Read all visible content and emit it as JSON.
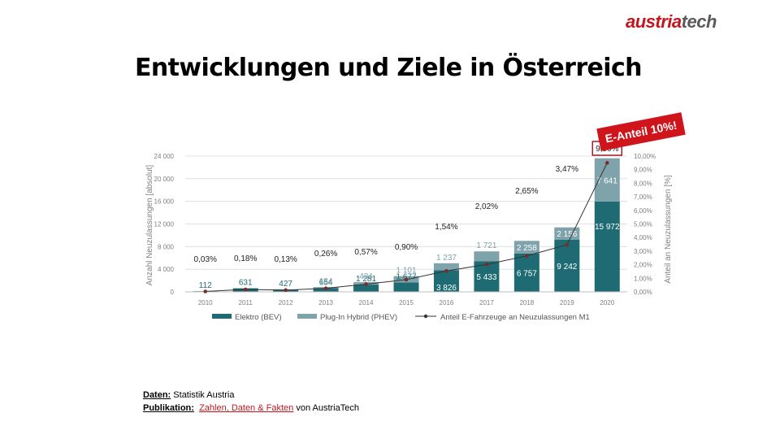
{
  "brand": {
    "logo_part1": "austria",
    "logo_part2": "tech"
  },
  "slide": {
    "title": "Entwicklungen und Ziele in Österreich"
  },
  "badge": {
    "text": "E-Anteil 10%!"
  },
  "footer": {
    "data_label": "Daten:",
    "data_value": "Statistik Austria",
    "pub_label": "Publikation:",
    "pub_link": "Zahlen, Daten & Fakten",
    "pub_suffix": "von AustriaTech"
  },
  "colors": {
    "bev": "#1f6b73",
    "phev": "#7fa3aa",
    "line": "#333333",
    "badge": "#d0141c",
    "accent": "#a31c24"
  },
  "chart_data": {
    "type": "bar",
    "stacked": true,
    "categories": [
      "2010",
      "2011",
      "2012",
      "2013",
      "2014",
      "2015",
      "2016",
      "2017",
      "2018",
      "2019",
      "2020"
    ],
    "series": [
      {
        "name": "Elektro (BEV)",
        "values": [
          112,
          631,
          427,
          654,
          1281,
          1677,
          3826,
          5433,
          6757,
          9242,
          15972
        ],
        "labels": [
          "112",
          "631",
          "427",
          "654",
          "1 281",
          "1 677",
          "3 826",
          "5 433",
          "6 757",
          "9 242",
          "15 972"
        ]
      },
      {
        "name": "Plug-In Hybrid (PHEV)",
        "values": [
          0,
          0,
          0,
          184,
          434,
          1101,
          1237,
          1721,
          2258,
          2156,
          7641
        ],
        "labels": [
          "",
          "",
          "",
          "184",
          "434",
          "1 101",
          "1 237",
          "1 721",
          "2 258",
          "2 156",
          "7 641"
        ]
      },
      {
        "name": "Anteil E-Fahrzeuge an Neuzulassungen M1",
        "axis": "right",
        "values": [
          0.03,
          0.18,
          0.13,
          0.26,
          0.57,
          0.9,
          1.54,
          2.02,
          2.65,
          3.47,
          9.5
        ],
        "labels": [
          "0,03%",
          "0,18%",
          "0,13%",
          "0,26%",
          "0,57%",
          "0,90%",
          "1,54%",
          "2,02%",
          "2,65%",
          "3,47%",
          "9,50%"
        ]
      }
    ],
    "ylabel": "Anzahl Neuzulassungen [absolut]",
    "y2label": "Anteil an Neuzulassungen [%]",
    "ylim": [
      0,
      24000
    ],
    "y2lim": [
      0,
      10
    ],
    "yticks": [
      "0",
      "4 000",
      "8 000",
      "12 000",
      "16 000",
      "20 000",
      "24 000"
    ],
    "y2ticks": [
      "0,00%",
      "1,00%",
      "2,00%",
      "3,00%",
      "4,00%",
      "5,00%",
      "6,00%",
      "7,00%",
      "8,00%",
      "9,00%",
      "10,00%"
    ],
    "grid": true,
    "legend_position": "bottom"
  }
}
